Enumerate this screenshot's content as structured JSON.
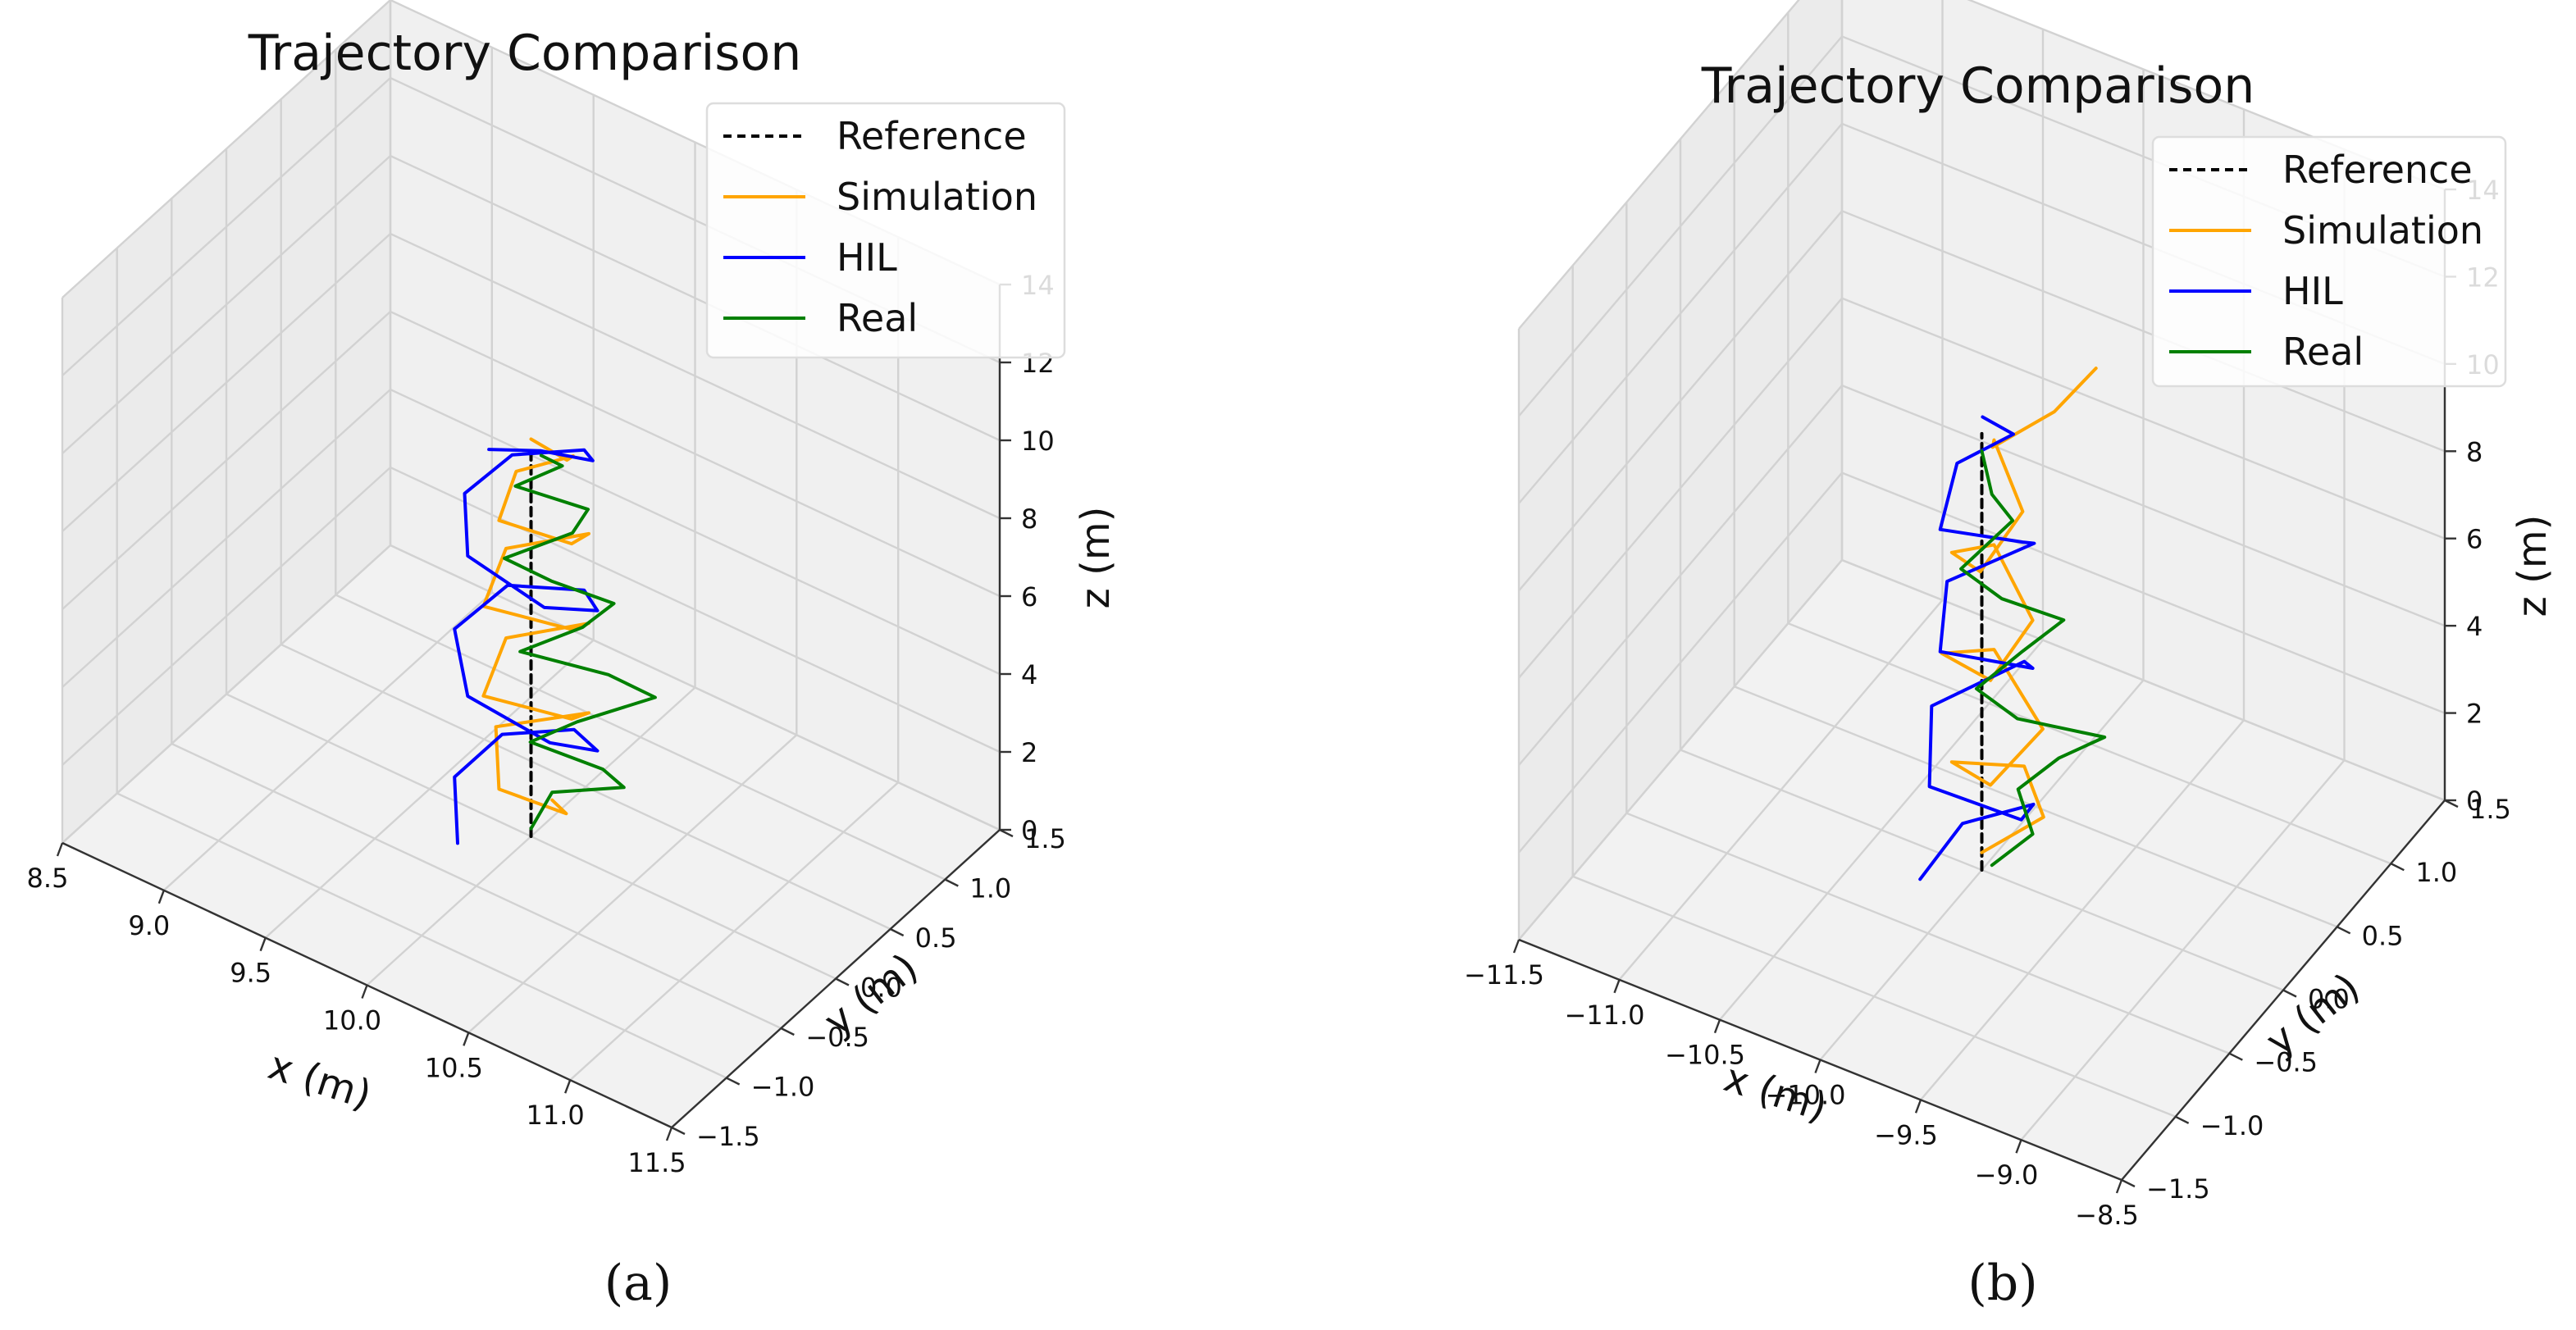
{
  "colors": {
    "reference": "#000000",
    "simulation": "#ffa500",
    "hil": "#0000ff",
    "real": "#008000"
  },
  "chart_data": [
    {
      "type": "line3d",
      "title": "Trajectory Comparison",
      "xlabel": "x (m)",
      "ylabel": "y (m)",
      "zlabel": "z (m)",
      "xlim": [
        8.5,
        11.5
      ],
      "ylim": [
        -1.5,
        1.5
      ],
      "zlim": [
        0,
        14
      ],
      "x_ticks": [
        "8.5",
        "9.0",
        "9.5",
        "10.0",
        "10.5",
        "11.0",
        "11.5"
      ],
      "y_ticks": [
        "−1.5",
        "−1.0",
        "−0.5",
        "0.0",
        "0.5",
        "1.0",
        "1.5"
      ],
      "z_ticks": [
        "0",
        "2",
        "4",
        "6",
        "8",
        "10",
        "12",
        "14"
      ],
      "legend": [
        "Reference",
        "Simulation",
        "HIL",
        "Real"
      ],
      "caption": "(a)",
      "series": [
        {
          "name": "Reference",
          "x": [
            10,
            10
          ],
          "y": [
            0,
            0
          ],
          "z": [
            0,
            10
          ]
        },
        {
          "name": "Simulation",
          "x": [
            10.05,
            10.2,
            9.95,
            9.8,
            10.15,
            10.2,
            9.9,
            9.85,
            10.15,
            10.2,
            9.9,
            9.85,
            10.15,
            10.2,
            9.95,
            9.9,
            10.1,
            10.15,
            10.0
          ],
          "y": [
            0.1,
            -0.05,
            -0.2,
            0.05,
            0.25,
            0.0,
            -0.25,
            0.05,
            0.25,
            0.0,
            -0.25,
            0.05,
            0.25,
            0.0,
            -0.2,
            0.05,
            0.2,
            0.05,
            0.0
          ],
          "z": [
            0.8,
            1.2,
            1.6,
            2.2,
            2.9,
            3.5,
            4.0,
            4.6,
            5.2,
            5.8,
            6.3,
            6.9,
            7.5,
            8.0,
            8.5,
            9.0,
            9.5,
            9.9,
            10.2
          ]
        },
        {
          "name": "HIL",
          "x": [
            9.8,
            9.65,
            9.75,
            10.05,
            10.3,
            10.2,
            9.85,
            9.65,
            9.75,
            10.1,
            10.3,
            10.2,
            9.85,
            9.7,
            9.8,
            10.1,
            10.25,
            10.1,
            9.9
          ],
          "y": [
            -0.3,
            -0.05,
            0.2,
            0.3,
            0.05,
            -0.2,
            -0.3,
            -0.05,
            0.25,
            0.3,
            0.05,
            -0.25,
            -0.3,
            -0.05,
            0.2,
            0.3,
            0.1,
            -0.1,
            -0.2
          ],
          "z": [
            0.1,
            0.8,
            1.5,
            2.1,
            2.8,
            3.4,
            4.0,
            4.6,
            5.2,
            5.8,
            6.4,
            7.0,
            7.6,
            8.2,
            8.8,
            9.4,
            10.0,
            10.4,
            10.2
          ]
        },
        {
          "name": "Real",
          "x": [
            10.0,
            10.05,
            10.35,
            10.3,
            10.05,
            10.2,
            10.45,
            10.3,
            10.0,
            10.2,
            10.3,
            10.1,
            9.95,
            10.15,
            10.2,
            9.95,
            10.1,
            10.05
          ],
          "y": [
            0.0,
            0.1,
            0.2,
            0.1,
            -0.1,
            0.05,
            0.3,
            0.15,
            -0.1,
            0.1,
            0.2,
            0.0,
            -0.15,
            0.1,
            0.15,
            -0.05,
            0.1,
            0.0
          ],
          "z": [
            0.2,
            1.0,
            1.6,
            2.2,
            2.8,
            3.3,
            3.9,
            4.5,
            5.0,
            5.6,
            6.2,
            6.8,
            7.4,
            7.9,
            8.5,
            9.0,
            9.5,
            9.9
          ]
        }
      ]
    },
    {
      "type": "line3d",
      "title": "Trajectory Comparison",
      "xlabel": "x (m)",
      "ylabel": "y (m)",
      "zlabel": "z (m)",
      "xlim": [
        -11.5,
        -8.5
      ],
      "ylim": [
        -1.5,
        1.5
      ],
      "zlim": [
        0,
        14
      ],
      "x_ticks": [
        "−11.5",
        "−11.0",
        "−10.5",
        "−10.0",
        "−9.5",
        "−9.0",
        "−8.5"
      ],
      "y_ticks": [
        "−1.5",
        "−1.0",
        "−0.5",
        "0.0",
        "0.5",
        "1.0",
        "1.5"
      ],
      "z_ticks": [
        "0",
        "2",
        "4",
        "6",
        "8",
        "10",
        "12",
        "14"
      ],
      "legend": [
        "Reference",
        "Simulation",
        "HIL",
        "Real"
      ],
      "caption": "(b)",
      "series": [
        {
          "name": "Reference",
          "x": [
            -10,
            -10
          ],
          "y": [
            0,
            0
          ],
          "z": [
            0,
            10
          ]
        },
        {
          "name": "Simulation",
          "x": [
            -10.0,
            -9.8,
            -9.95,
            -10.15,
            -9.85,
            -9.75,
            -10.1,
            -10.2,
            -9.85,
            -9.8,
            -10.1,
            -10.15,
            -9.9,
            -9.85,
            -10.1,
            -10.0,
            -9.8,
            -9.7
          ],
          "y": [
            0.0,
            0.2,
            0.3,
            0.0,
            -0.2,
            0.1,
            0.3,
            0.0,
            -0.2,
            0.1,
            0.3,
            0.0,
            -0.2,
            0.1,
            0.3,
            0.1,
            0.3,
            0.5
          ],
          "z": [
            0.4,
            1.0,
            1.6,
            2.2,
            2.8,
            3.4,
            4.0,
            4.6,
            5.2,
            5.8,
            6.4,
            7.0,
            7.6,
            8.2,
            8.8,
            9.4,
            10.0,
            10.6
          ]
        },
        {
          "name": "HIL",
          "x": [
            -10.2,
            -10.15,
            -9.85,
            -9.75,
            -10.1,
            -10.25,
            -9.95,
            -9.8,
            -10.1,
            -10.2,
            -9.9,
            -9.85,
            -10.1,
            -10.15,
            -9.95,
            -10.05
          ],
          "y": [
            -0.2,
            0.1,
            0.2,
            -0.1,
            -0.3,
            0.0,
            0.3,
            0.1,
            -0.2,
            0.05,
            0.3,
            0.1,
            -0.2,
            0.05,
            0.2,
            0.1
          ],
          "z": [
            0.0,
            0.5,
            1.2,
            1.9,
            2.6,
            3.3,
            4.0,
            4.7,
            5.4,
            6.1,
            6.8,
            7.5,
            8.2,
            8.9,
            9.5,
            10.0
          ]
        },
        {
          "name": "Real",
          "x": [
            -9.95,
            -9.8,
            -9.9,
            -9.75,
            -9.55,
            -9.85,
            -10.0,
            -9.85,
            -9.7,
            -9.9,
            -10.05,
            -9.9,
            -9.95,
            -10.0
          ],
          "y": [
            0.0,
            0.1,
            0.15,
            0.25,
            0.3,
            0.05,
            -0.05,
            0.1,
            0.2,
            0.0,
            -0.1,
            0.1,
            0.0,
            0.0
          ],
          "z": [
            0.2,
            0.9,
            1.6,
            2.3,
            3.0,
            3.6,
            4.3,
            5.0,
            5.7,
            6.4,
            7.1,
            7.9,
            8.7,
            9.6
          ]
        }
      ]
    }
  ]
}
